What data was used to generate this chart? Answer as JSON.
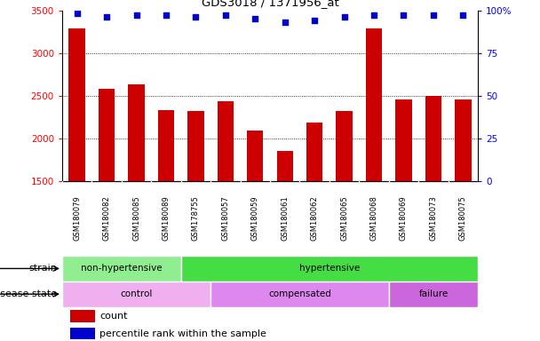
{
  "title": "GDS3018 / 1371956_at",
  "samples": [
    "GSM180079",
    "GSM180082",
    "GSM180085",
    "GSM180089",
    "GSM178755",
    "GSM180057",
    "GSM180059",
    "GSM180061",
    "GSM180062",
    "GSM180065",
    "GSM180068",
    "GSM180069",
    "GSM180073",
    "GSM180075"
  ],
  "counts": [
    3290,
    2580,
    2630,
    2330,
    2320,
    2430,
    2090,
    1850,
    2180,
    2320,
    3290,
    2450,
    2500,
    2450
  ],
  "percentile_ranks": [
    98,
    96,
    97,
    97,
    96,
    97,
    95,
    93,
    94,
    96,
    97,
    97,
    97,
    97
  ],
  "bar_color": "#cc0000",
  "dot_color": "#0000cc",
  "ylim_left": [
    1500,
    3500
  ],
  "ylim_right": [
    0,
    100
  ],
  "yticks_left": [
    1500,
    2000,
    2500,
    3000,
    3500
  ],
  "yticks_right": [
    0,
    25,
    50,
    75,
    100
  ],
  "yticklabels_right": [
    "0",
    "25",
    "50",
    "75",
    "100%"
  ],
  "grid_values": [
    2000,
    2500,
    3000
  ],
  "strain_groups": [
    {
      "label": "non-hypertensive",
      "start": 0,
      "end": 4,
      "color": "#90ee90"
    },
    {
      "label": "hypertensive",
      "start": 4,
      "end": 14,
      "color": "#44dd44"
    }
  ],
  "disease_groups": [
    {
      "label": "control",
      "start": 0,
      "end": 5,
      "color": "#f0b0f0"
    },
    {
      "label": "compensated",
      "start": 5,
      "end": 11,
      "color": "#dd88ee"
    },
    {
      "label": "failure",
      "start": 11,
      "end": 14,
      "color": "#cc66dd"
    }
  ],
  "legend_items": [
    {
      "label": "count",
      "color": "#cc0000"
    },
    {
      "label": "percentile rank within the sample",
      "color": "#0000cc"
    }
  ],
  "background_color": "#ffffff",
  "tick_label_area_color": "#cccccc"
}
